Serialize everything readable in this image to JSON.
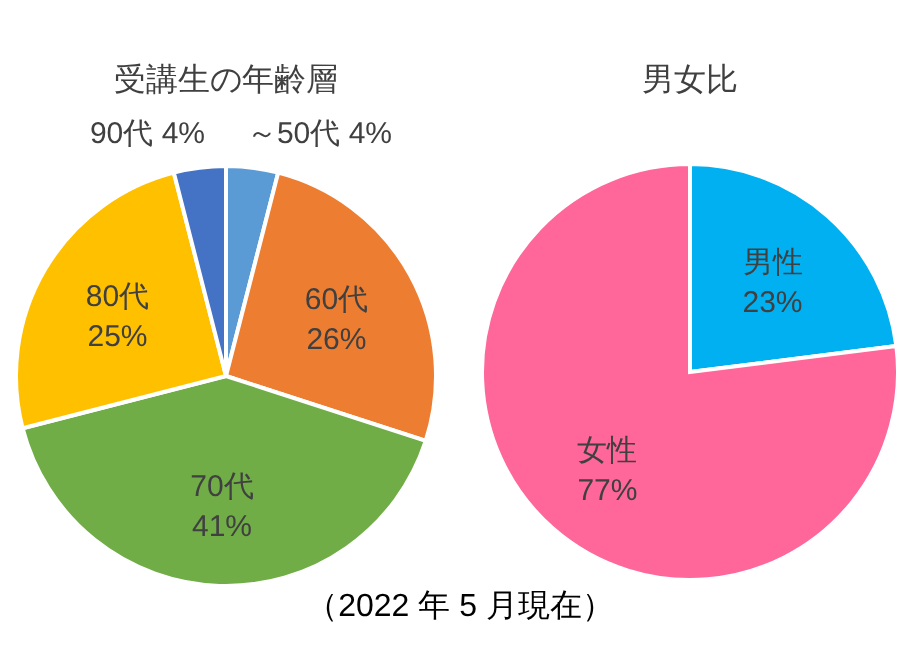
{
  "chart_data": [
    {
      "type": "pie",
      "title": "受講生の年齢層",
      "categories": [
        "～50代",
        "60代",
        "70代",
        "80代",
        "90代"
      ],
      "values": [
        4,
        26,
        41,
        25,
        4
      ],
      "value_labels": [
        "4%",
        "26%",
        "41%",
        "25%",
        "4%"
      ],
      "colors": [
        "#5b9bd5",
        "#ed7d31",
        "#70ad47",
        "#ffc000",
        "#4472c4"
      ],
      "annotations": [
        "（2022 年 5 月現在）"
      ]
    },
    {
      "type": "pie",
      "title": "男女比",
      "categories": [
        "男性",
        "女性"
      ],
      "values": [
        23,
        77
      ],
      "value_labels": [
        "23%",
        "77%"
      ],
      "colors": [
        "#00b0f0",
        "#ff6699"
      ]
    }
  ]
}
